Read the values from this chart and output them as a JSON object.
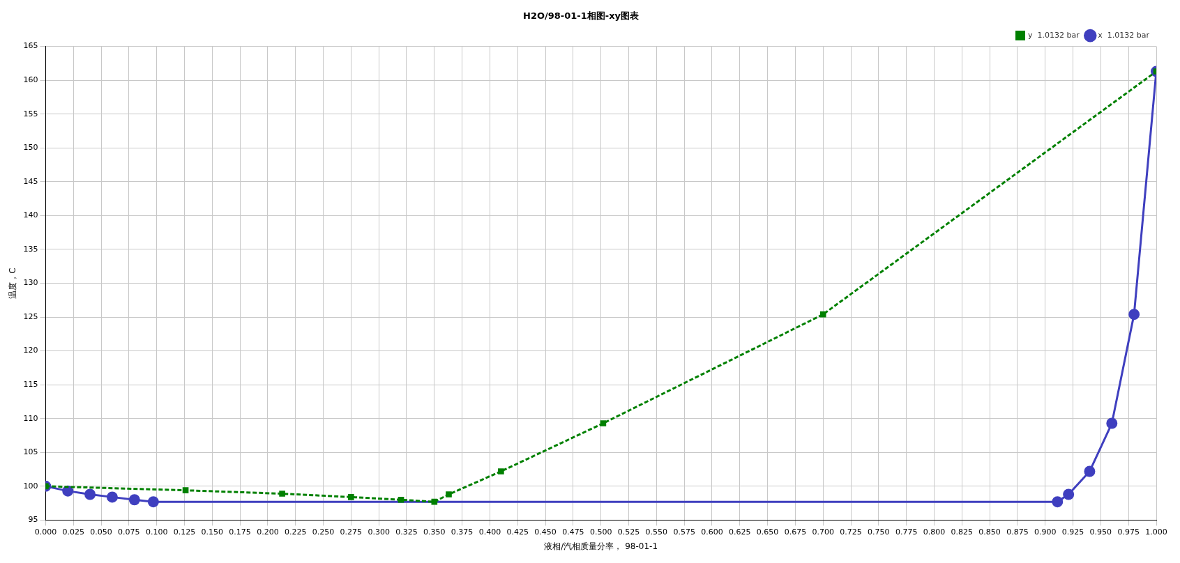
{
  "chart_data": {
    "type": "line",
    "title": "H2O/98-01-1相图-xy图表",
    "xlabel": "液相/汽相质量分率， 98-01-1",
    "ylabel": "温度，C",
    "xlim": [
      0,
      1
    ],
    "xticks": [
      {
        "value": 0,
        "label": "0.000"
      },
      {
        "value": 0.025,
        "label": "0.025"
      },
      {
        "value": 0.05,
        "label": "0.050"
      },
      {
        "value": 0.075,
        "label": "0.075"
      },
      {
        "value": 0.1,
        "label": "0.100"
      },
      {
        "value": 0.125,
        "label": "0.125"
      },
      {
        "value": 0.15,
        "label": "0.150"
      },
      {
        "value": 0.175,
        "label": "0.175"
      },
      {
        "value": 0.2,
        "label": "0.200"
      },
      {
        "value": 0.225,
        "label": "0.225"
      },
      {
        "value": 0.25,
        "label": "0.250"
      },
      {
        "value": 0.275,
        "label": "0.275"
      },
      {
        "value": 0.3,
        "label": "0.300"
      },
      {
        "value": 0.325,
        "label": "0.325"
      },
      {
        "value": 0.35,
        "label": "0.350"
      },
      {
        "value": 0.375,
        "label": "0.375"
      },
      {
        "value": 0.4,
        "label": "0.400"
      },
      {
        "value": 0.425,
        "label": "0.425"
      },
      {
        "value": 0.45,
        "label": "0.450"
      },
      {
        "value": 0.475,
        "label": "0.475"
      },
      {
        "value": 0.5,
        "label": "0.500"
      },
      {
        "value": 0.525,
        "label": "0.525"
      },
      {
        "value": 0.55,
        "label": "0.550"
      },
      {
        "value": 0.575,
        "label": "0.575"
      },
      {
        "value": 0.6,
        "label": "0.600"
      },
      {
        "value": 0.625,
        "label": "0.625"
      },
      {
        "value": 0.65,
        "label": "0.650"
      },
      {
        "value": 0.675,
        "label": "0.675"
      },
      {
        "value": 0.7,
        "label": "0.700"
      },
      {
        "value": 0.725,
        "label": "0.725"
      },
      {
        "value": 0.75,
        "label": "0.750"
      },
      {
        "value": 0.775,
        "label": "0.775"
      },
      {
        "value": 0.8,
        "label": "0.800"
      },
      {
        "value": 0.825,
        "label": "0.825"
      },
      {
        "value": 0.85,
        "label": "0.850"
      },
      {
        "value": 0.875,
        "label": "0.875"
      },
      {
        "value": 0.9,
        "label": "0.900"
      },
      {
        "value": 0.925,
        "label": "0.925"
      },
      {
        "value": 0.95,
        "label": "0.950"
      },
      {
        "value": 0.975,
        "label": "0.975"
      },
      {
        "value": 1,
        "label": "1.000"
      }
    ],
    "ylim": [
      95,
      165
    ],
    "yticks": [
      95,
      100,
      105,
      110,
      115,
      120,
      125,
      130,
      135,
      140,
      145,
      150,
      155,
      160,
      165
    ],
    "grid": true,
    "legend": "top right",
    "series": [
      {
        "name": "x  1.0132 bar",
        "color": "#3f3fbf",
        "marker": "circle",
        "line_style": "solid",
        "x": [
          0,
          0.02,
          0.04,
          0.06,
          0.08,
          0.097,
          0.911,
          0.921,
          0.94,
          0.96,
          0.98,
          1.0
        ],
        "values": [
          100,
          99.3,
          98.8,
          98.4,
          98.0,
          97.7,
          97.7,
          98.8,
          102.2,
          109.3,
          125.4,
          161.3
        ]
      },
      {
        "name": "y  1.0132 bar",
        "color": "#008000",
        "marker": "square",
        "line_style": "dashed",
        "x": [
          0,
          0.126,
          0.213,
          0.275,
          0.32,
          0.35,
          0.363,
          0.41,
          0.502,
          0.7,
          1.0
        ],
        "values": [
          100,
          99.4,
          98.9,
          98.4,
          98.0,
          97.7,
          98.8,
          102.2,
          109.3,
          125.4,
          161.3
        ]
      }
    ]
  }
}
